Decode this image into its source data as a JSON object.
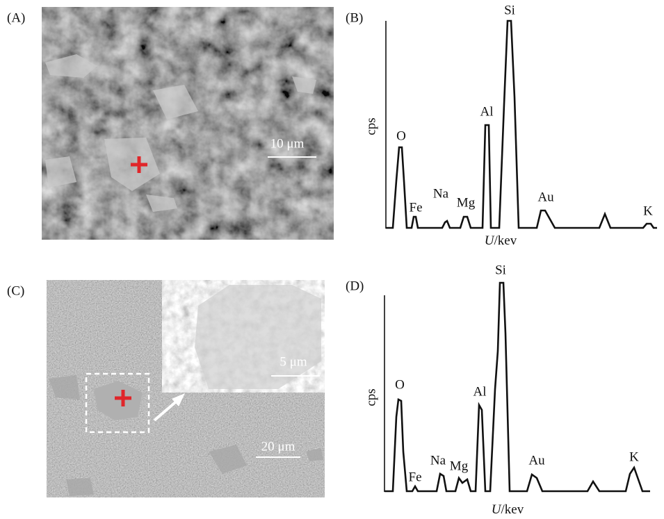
{
  "panels": [
    {
      "label": "(A)",
      "scale_bar": "10 μm"
    },
    {
      "label": "(B)",
      "y_label": "cps",
      "x_label_var": "U",
      "x_label_unit": "/kev",
      "peaks": [
        "O",
        "Fe",
        "Na",
        "Mg",
        "Al",
        "Si",
        "Au",
        "K"
      ]
    },
    {
      "label": "(C)",
      "scale_bar": "20 μm",
      "inset_scale_bar": "5 μm"
    },
    {
      "label": "(D)",
      "y_label": "cps",
      "x_label_var": "U",
      "x_label_unit": "/kev",
      "peaks": [
        "O",
        "Fe",
        "Na",
        "Mg",
        "Al",
        "Si",
        "Au",
        "K"
      ]
    }
  ]
}
